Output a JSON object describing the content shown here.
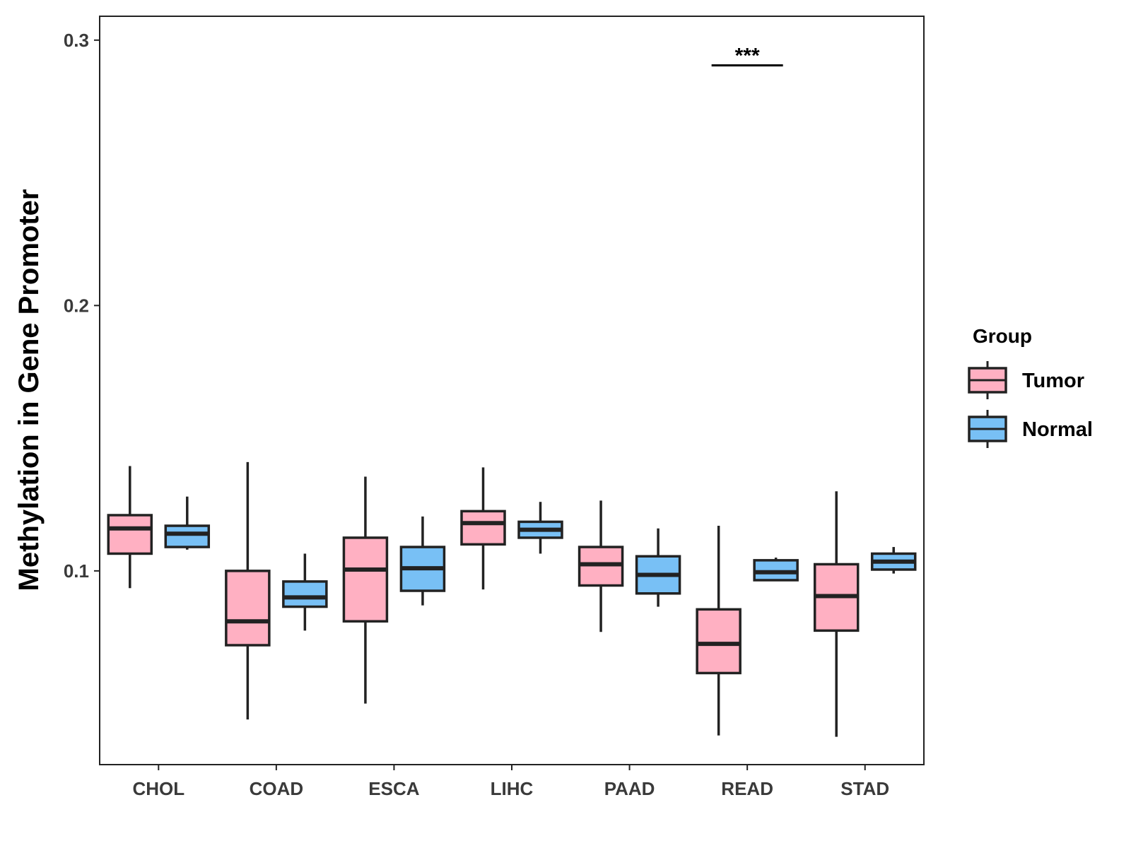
{
  "chart_data": {
    "type": "boxplot",
    "title": "",
    "xlabel": "",
    "ylabel": "Methylation in Gene Promoter",
    "ylim": [
      0.027,
      0.309
    ],
    "yticks": [
      0.1,
      0.2,
      0.3
    ],
    "ytick_labels": [
      "0.1",
      "0.2",
      "0.3"
    ],
    "grid": false,
    "categories": [
      "CHOL",
      "COAD",
      "ESCA",
      "LIHC",
      "PAAD",
      "READ",
      "STAD"
    ],
    "legend": {
      "title": "Group",
      "position": "right",
      "entries": [
        {
          "name": "Tumor",
          "color": "#FFB0C2"
        },
        {
          "name": "Normal",
          "color": "#78C0F5"
        }
      ]
    },
    "series": [
      {
        "name": "Tumor",
        "color": "#FFB0C2",
        "boxes": [
          {
            "category": "CHOL",
            "min": 0.0935,
            "q1": 0.1065,
            "median": 0.116,
            "q3": 0.121,
            "max": 0.1395
          },
          {
            "category": "COAD",
            "min": 0.044,
            "q1": 0.072,
            "median": 0.081,
            "q3": 0.1,
            "max": 0.141
          },
          {
            "category": "ESCA",
            "min": 0.05,
            "q1": 0.081,
            "median": 0.1005,
            "q3": 0.1125,
            "max": 0.1355
          },
          {
            "category": "LIHC",
            "min": 0.093,
            "q1": 0.11,
            "median": 0.118,
            "q3": 0.1225,
            "max": 0.139
          },
          {
            "category": "PAAD",
            "min": 0.077,
            "q1": 0.0945,
            "median": 0.1025,
            "q3": 0.109,
            "max": 0.1265
          },
          {
            "category": "READ",
            "min": 0.038,
            "q1": 0.0615,
            "median": 0.0725,
            "q3": 0.0855,
            "max": 0.117
          },
          {
            "category": "STAD",
            "min": 0.0375,
            "q1": 0.0775,
            "median": 0.0905,
            "q3": 0.1025,
            "max": 0.13
          }
        ]
      },
      {
        "name": "Normal",
        "color": "#78C0F5",
        "boxes": [
          {
            "category": "CHOL",
            "min": 0.108,
            "q1": 0.109,
            "median": 0.114,
            "q3": 0.117,
            "max": 0.128
          },
          {
            "category": "COAD",
            "min": 0.0775,
            "q1": 0.0865,
            "median": 0.09,
            "q3": 0.096,
            "max": 0.1065
          },
          {
            "category": "ESCA",
            "min": 0.087,
            "q1": 0.0925,
            "median": 0.101,
            "q3": 0.109,
            "max": 0.1205
          },
          {
            "category": "LIHC",
            "min": 0.1065,
            "q1": 0.1125,
            "median": 0.1155,
            "q3": 0.1185,
            "max": 0.126
          },
          {
            "category": "PAAD",
            "min": 0.0865,
            "q1": 0.0915,
            "median": 0.0985,
            "q3": 0.1055,
            "max": 0.116
          },
          {
            "category": "READ",
            "min": 0.0965,
            "q1": 0.0965,
            "median": 0.0995,
            "q3": 0.104,
            "max": 0.105
          },
          {
            "category": "STAD",
            "min": 0.099,
            "q1": 0.1005,
            "median": 0.1035,
            "q3": 0.1065,
            "max": 0.109
          }
        ]
      }
    ],
    "annotations": [
      {
        "category": "READ",
        "label": "***",
        "y": 0.2905
      }
    ]
  }
}
